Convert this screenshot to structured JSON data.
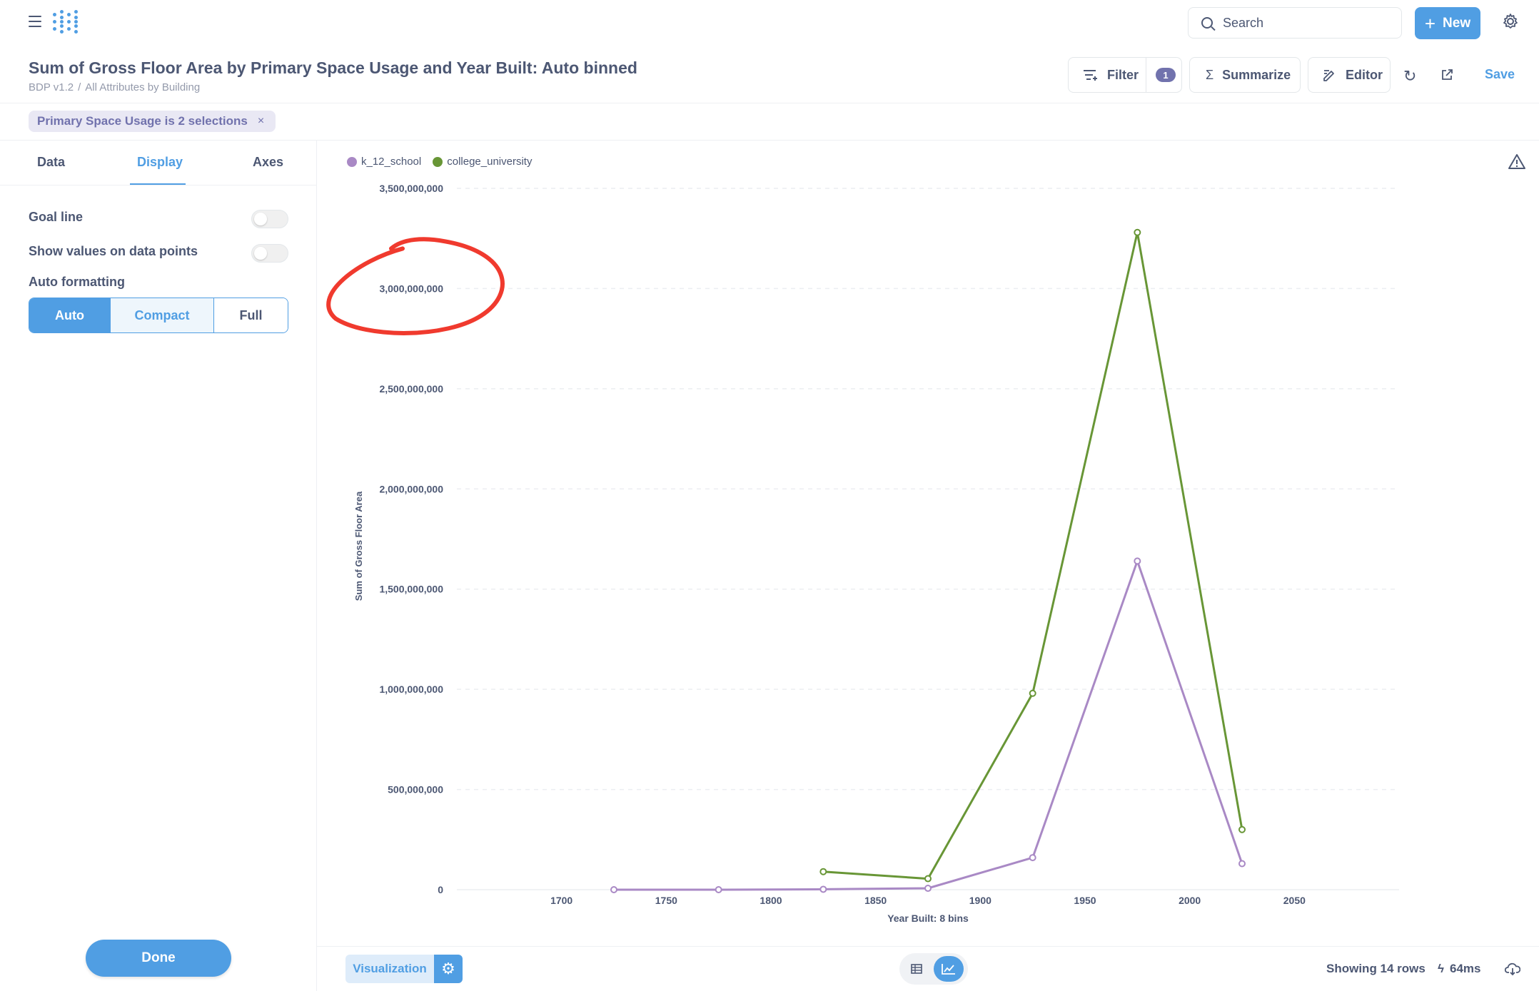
{
  "nav": {
    "search_placeholder": "Search",
    "new_label": "New"
  },
  "header": {
    "title": "Sum of Gross Floor Area by Primary Space Usage and Year Built: Auto binned",
    "breadcrumb": [
      "BDP v1.2",
      "All Attributes by Building"
    ],
    "breadcrumb_sep": "/",
    "filter_label": "Filter",
    "filter_count": "1",
    "summarize_label": "Summarize",
    "editor_label": "Editor",
    "save_label": "Save"
  },
  "filter_pill": {
    "label": "Primary Space Usage is 2 selections",
    "remove": "×"
  },
  "sidebar": {
    "tabs": [
      {
        "label": "Data",
        "active": false
      },
      {
        "label": "Display",
        "active": true
      },
      {
        "label": "Axes",
        "active": false
      }
    ],
    "goal_line_label": "Goal line",
    "show_values_label": "Show values on data points",
    "auto_formatting_label": "Auto formatting",
    "formatting_options": [
      "Auto",
      "Compact",
      "Full"
    ],
    "formatting_selected": "Auto",
    "done_label": "Done"
  },
  "chart_data": {
    "type": "line",
    "xlabel": "Year Built: 8 bins",
    "ylabel": "Sum of Gross Floor Area",
    "xlim": [
      1650,
      2100
    ],
    "ylim": [
      0,
      3500000000
    ],
    "x_ticks": [
      1700,
      1750,
      1800,
      1850,
      1900,
      1950,
      2000,
      2050
    ],
    "y_ticks": [
      0,
      500000000,
      1000000000,
      1500000000,
      2000000000,
      2500000000,
      3000000000,
      3500000000
    ],
    "y_tick_labels": [
      "0",
      "500,000,000",
      "1,000,000,000",
      "1,500,000,000",
      "2,000,000,000",
      "2,500,000,000",
      "3,000,000,000",
      "3,500,000,000"
    ],
    "grid": true,
    "legend": "top-left",
    "series": [
      {
        "name": "k_12_school",
        "color": "#a989c5",
        "points": [
          [
            1725,
            0
          ],
          [
            1775,
            0
          ],
          [
            1825,
            2000000
          ],
          [
            1875,
            7000000
          ],
          [
            1925,
            160000000
          ],
          [
            1975,
            1640000000
          ],
          [
            2025,
            130000000
          ]
        ]
      },
      {
        "name": "college_university",
        "color": "#689636",
        "points": [
          [
            1825,
            90000000
          ],
          [
            1875,
            55000000
          ],
          [
            1925,
            980000000
          ],
          [
            1975,
            3280000000
          ],
          [
            2025,
            300000000
          ]
        ]
      }
    ]
  },
  "annotation": {
    "shape": "hand-drawn ellipse",
    "color": "#f03a2e",
    "target": "3,000,000,000 y-axis tick"
  },
  "footer": {
    "visualization_label": "Visualization",
    "rows_text": "Showing 14 rows",
    "time_text": "64ms"
  },
  "colors": {
    "accent": "#509ee3",
    "filter_badge": "#7172ad",
    "text": "#4c5773"
  }
}
